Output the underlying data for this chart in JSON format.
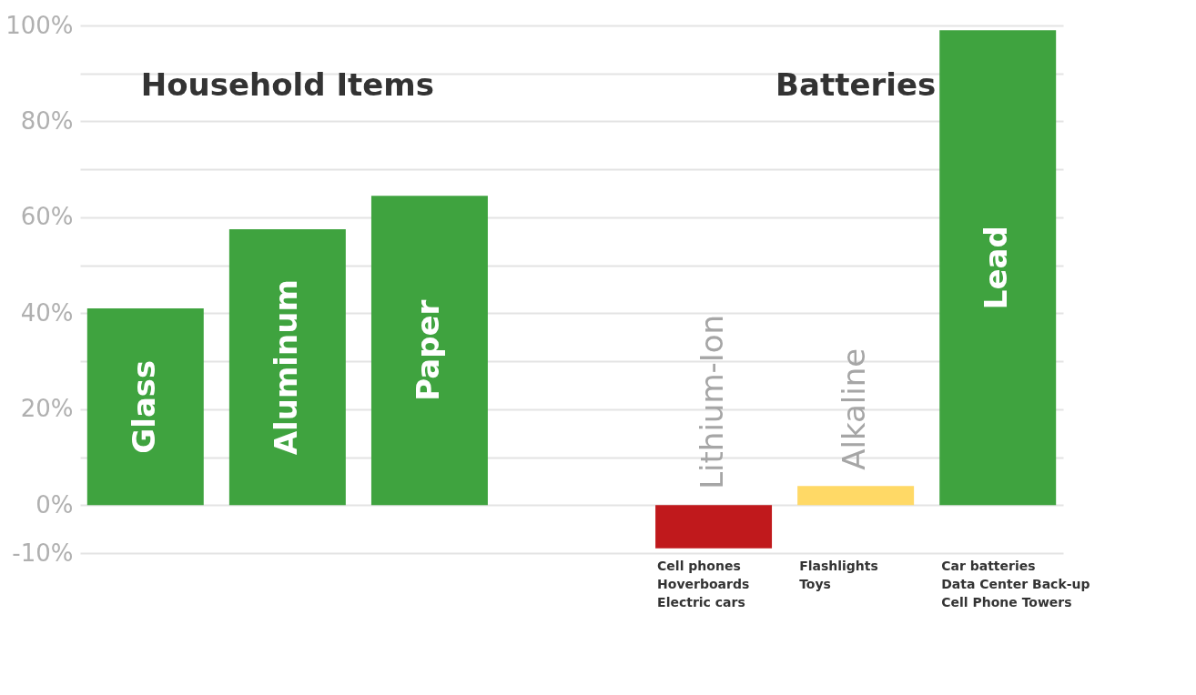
{
  "chart_data": {
    "type": "bar",
    "categories": [
      "Glass",
      "Aluminum",
      "Paper",
      null,
      "Lithium-Ion",
      "Alkaline",
      "Lead"
    ],
    "values": [
      41,
      57.5,
      64.5,
      null,
      -9,
      4,
      99
    ],
    "colors": [
      "#3fa33f",
      "#3fa33f",
      "#3fa33f",
      "#3fa33f",
      "#c0191c",
      "#ffd966",
      "#3fa33f"
    ],
    "ylim": [
      -10,
      100
    ],
    "yticks": [
      {
        "value": -10,
        "label": "-10%"
      },
      {
        "value": 0,
        "label": "0%"
      },
      {
        "value": 10,
        "label": null
      },
      {
        "value": 20,
        "label": "20%"
      },
      {
        "value": 30,
        "label": null
      },
      {
        "value": 40,
        "label": "40%"
      },
      {
        "value": 50,
        "label": null
      },
      {
        "value": 60,
        "label": "60%"
      },
      {
        "value": 70,
        "label": null
      },
      {
        "value": 80,
        "label": "80%"
      },
      {
        "value": 90,
        "label": null
      },
      {
        "value": 100,
        "label": "100%"
      }
    ],
    "grid": "y",
    "annotations": [
      "Household Items",
      "Batteries",
      "Cell phones\nHoverboards\nElectric cars",
      "Flashlights\nToys",
      "Car batteries\nData Center Back-up\nCell Phone Towers"
    ]
  }
}
